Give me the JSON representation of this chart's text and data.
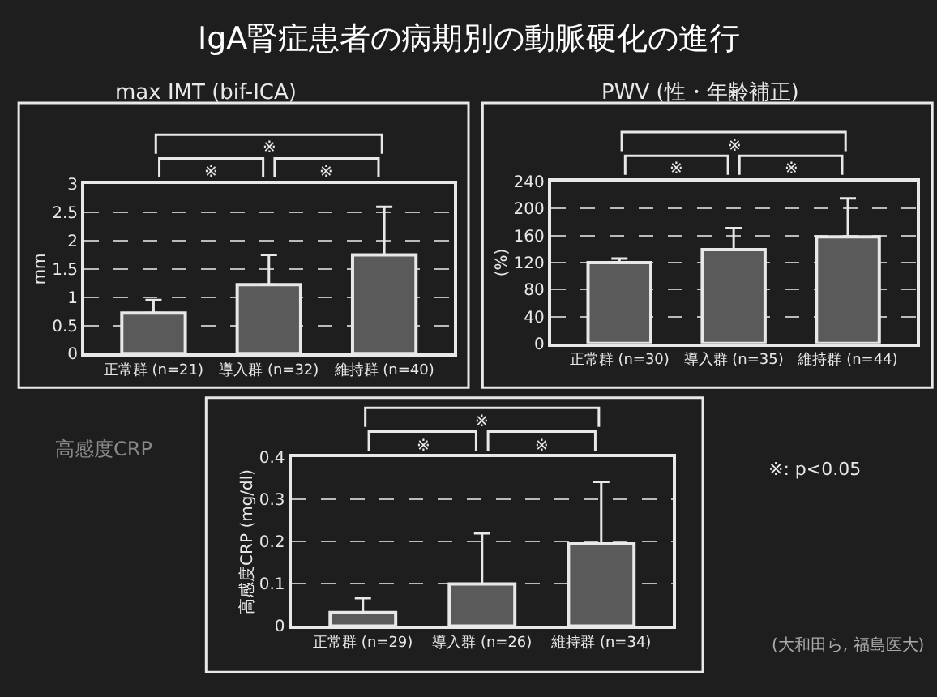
{
  "chart_data": [
    {
      "type": "bar",
      "title": "IgA腎症患者の病期別の動脈硬化の進行",
      "subtitle": "max IMT (bif-ICA)",
      "ylabel": "mm",
      "categories": [
        "正常群 (n=21)",
        "導入群 (n=32)",
        "維持群 (n=40)"
      ],
      "values": [
        0.72,
        1.22,
        1.75
      ],
      "color": "#5a5a5a",
      "errors": [
        [
          0.72,
          0.95
        ],
        [
          1.22,
          1.75
        ],
        [
          1.75,
          2.6
        ]
      ],
      "ylim": [
        0,
        3
      ],
      "yticks": [
        0,
        0.5,
        1,
        1.5,
        2,
        2.5,
        3
      ],
      "grid": "y",
      "annotations": [
        "※",
        "※",
        "※"
      ]
    },
    {
      "type": "bar",
      "title": "PWV (性・年齢補正)",
      "ylabel": "(%)",
      "categories": [
        "正常群 (n=30)",
        "導入群 (n=35)",
        "維持群 (n=44)"
      ],
      "values": [
        120,
        139,
        158
      ],
      "color": "#5a5a5a",
      "errors": [
        [
          120,
          126
        ],
        [
          139,
          171
        ],
        [
          158,
          215
        ]
      ],
      "ylim": [
        0,
        240
      ],
      "yticks": [
        0,
        40,
        80,
        120,
        160,
        200,
        240
      ],
      "grid": "y",
      "annotations": [
        "※",
        "※",
        "※"
      ]
    },
    {
      "type": "bar",
      "ylabel": "高感度CRP (mg/dl)",
      "categories": [
        "正常群 (n=29)",
        "導入群 (n=26)",
        "維持群 (n=34)"
      ],
      "values": [
        0.032,
        0.1,
        0.195
      ],
      "color": "#5a5a5a",
      "errors": [
        [
          0.032,
          0.066
        ],
        [
          0.1,
          0.22
        ],
        [
          0.195,
          0.342
        ]
      ],
      "ylim": [
        0,
        0.4
      ],
      "yticks": [
        0,
        0.1,
        0.2,
        0.3,
        0.4
      ],
      "grid": "y",
      "annotations": [
        "※",
        "※",
        "※",
        "高感度CRP",
        "※: p<0.05",
        "(大和田ら, 福島医大)"
      ]
    }
  ]
}
